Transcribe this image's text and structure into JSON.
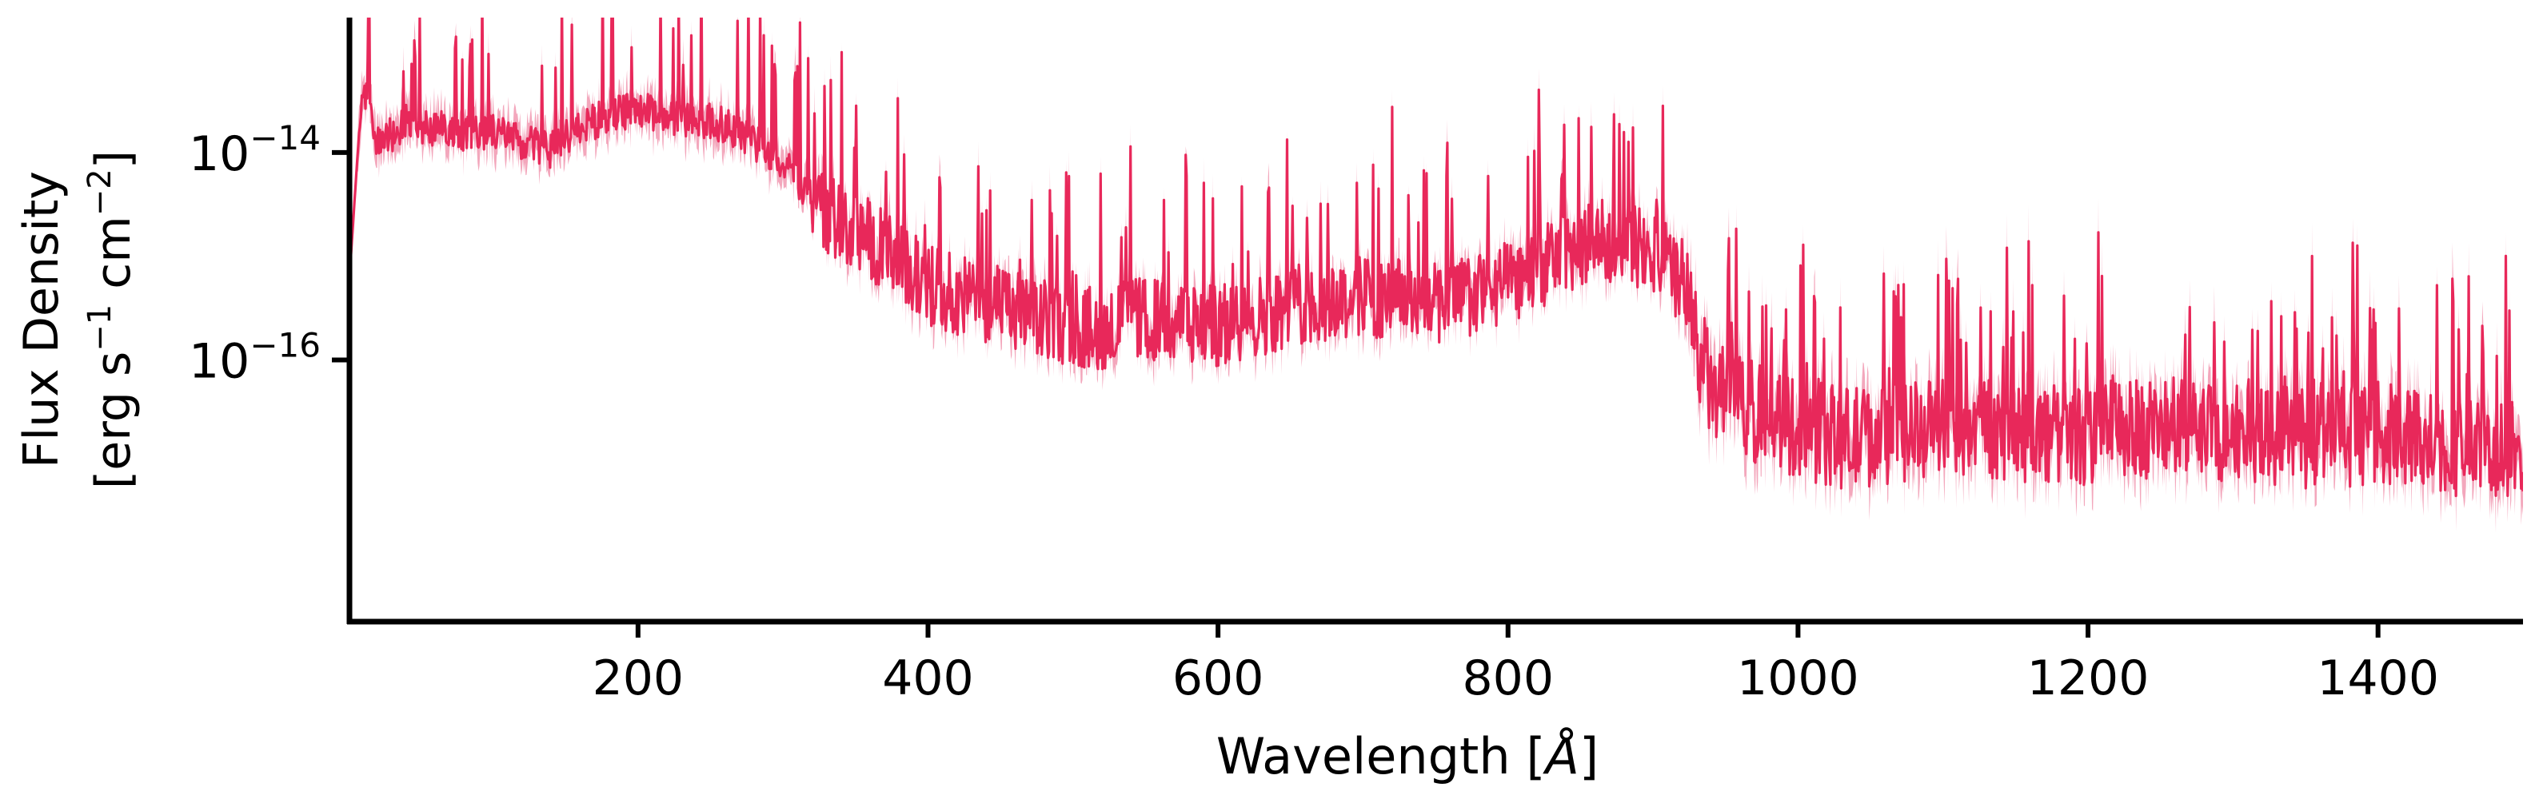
{
  "chart_data": {
    "type": "line",
    "title": "",
    "xlabel_main": "Wavelength [",
    "xlabel_unit": "Å",
    "xlabel_end": "]",
    "ylabel_line1": "Flux Density",
    "ylabel_line2": {
      "pre": "[erg s",
      "exp1": "−1",
      "mid": " cm",
      "exp2": "−2",
      "post": "]"
    },
    "x_ticks": [
      200,
      400,
      600,
      800,
      1000,
      1200,
      1400
    ],
    "x_tick_labels": [
      "200",
      "400",
      "600",
      "800",
      "1000",
      "1200",
      "1400"
    ],
    "y_ticks": [
      {
        "value": 1e-14,
        "base": "10",
        "exp": "−14"
      },
      {
        "value": 1e-16,
        "base": "10",
        "exp": "−16"
      }
    ],
    "xlim": [
      1,
      1500
    ],
    "ylim": [
      3e-19,
      2e-13
    ],
    "yscale": "log",
    "grid": false,
    "legend": "none",
    "colors": {
      "line": "#e8285a",
      "band": "#ef8aa5",
      "axis": "#000000"
    },
    "series": [
      {
        "x": [
          2,
          10,
          20,
          40,
          60,
          80,
          100,
          120,
          140,
          160,
          180,
          200,
          220,
          240,
          260,
          280,
          300,
          320,
          340,
          360,
          380,
          400,
          420,
          440,
          460,
          480,
          500,
          520,
          540,
          560,
          580,
          600,
          620,
          640,
          660,
          680,
          700,
          720,
          740,
          760,
          780,
          800,
          820,
          840,
          860,
          880,
          900,
          920,
          940,
          960,
          980,
          1000,
          1020,
          1040,
          1060,
          1080,
          1100,
          1120,
          1140,
          1160,
          1180,
          1200,
          1220,
          1240,
          1260,
          1280,
          1300,
          1320,
          1340,
          1360,
          1380,
          1400,
          1420,
          1440,
          1460,
          1480,
          1500
        ],
        "y": [
          1e-15,
          5e-14,
          1.2e-14,
          2e-14,
          1.8e-14,
          1.6e-14,
          1.7e-14,
          1.3e-14,
          1.1e-14,
          1.8e-14,
          2.4e-14,
          2.7e-14,
          2.3e-14,
          2.2e-14,
          1.9e-14,
          1.3e-14,
          8e-15,
          4e-15,
          2.2e-15,
          1.6e-15,
          9e-16,
          6e-16,
          4.5e-16,
          4e-16,
          3.2e-16,
          2.6e-16,
          2.3e-16,
          2.2e-16,
          2.8e-16,
          2.6e-16,
          2.4e-16,
          2.3e-16,
          2.7e-16,
          3.3e-16,
          3.8e-16,
          4.2e-16,
          4.4e-16,
          4.3e-16,
          4e-16,
          4.1e-16,
          4.8e-16,
          6e-16,
          8e-16,
          1.2e-15,
          1.5e-15,
          1.6e-15,
          1.1e-15,
          6e-16,
          5.5e-17,
          4e-17,
          3.2e-17,
          2.5e-17,
          2.1e-17,
          2e-17,
          2.2e-17,
          2.3e-17,
          2.6e-17,
          2.5e-17,
          2.4e-17,
          2.2e-17,
          2.1e-17,
          2.2e-17,
          2.4e-17,
          2.5e-17,
          2.4e-17,
          2.2e-17,
          2.4e-17,
          2.3e-17,
          2.1e-17,
          2e-17,
          2.1e-17,
          2.2e-17,
          2e-17,
          1.9e-17,
          1.6e-17,
          1.4e-17,
          1.5e-17
        ]
      }
    ]
  }
}
